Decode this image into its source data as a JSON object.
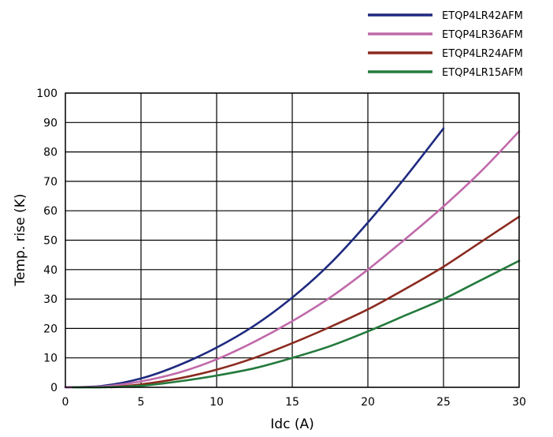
{
  "chart_data": {
    "type": "line",
    "xlabel": "Idc (A)",
    "ylabel": "Temp. rise (K)",
    "xlim": [
      0,
      30
    ],
    "ylim": [
      0,
      100
    ],
    "xticks": [
      "0",
      "5",
      "10",
      "15",
      "20",
      "25",
      "30"
    ],
    "yticks": [
      "0",
      "10",
      "20",
      "30",
      "40",
      "50",
      "60",
      "70",
      "80",
      "90",
      "100"
    ],
    "grid": true,
    "legend_position": "top-right",
    "series": [
      {
        "name": "ETQP4LR42AFM",
        "color": "#1f2a80",
        "points": [
          [
            0,
            0
          ],
          [
            2.5,
            0.5
          ],
          [
            5,
            3
          ],
          [
            7.5,
            7.5
          ],
          [
            10,
            13.5
          ],
          [
            12.5,
            21
          ],
          [
            15,
            30.5
          ],
          [
            17.5,
            42
          ],
          [
            20,
            56
          ],
          [
            22.5,
            71.5
          ],
          [
            25,
            88
          ]
        ]
      },
      {
        "name": "ETQP4LR36AFM",
        "color": "#c06aaa",
        "points": [
          [
            0,
            0
          ],
          [
            2.5,
            0.3
          ],
          [
            5,
            2
          ],
          [
            7.5,
            5
          ],
          [
            10,
            9.5
          ],
          [
            12.5,
            15.5
          ],
          [
            15,
            22.5
          ],
          [
            17.5,
            30.5
          ],
          [
            20,
            40
          ],
          [
            22.5,
            50.5
          ],
          [
            25,
            61.5
          ],
          [
            27.5,
            73.5
          ],
          [
            30,
            87
          ]
        ]
      },
      {
        "name": "ETQP4LR24AFM",
        "color": "#8b2a1f",
        "points": [
          [
            3,
            0
          ],
          [
            5,
            1
          ],
          [
            7.5,
            3
          ],
          [
            10,
            6
          ],
          [
            12.5,
            10
          ],
          [
            15,
            15
          ],
          [
            17.5,
            20.5
          ],
          [
            20,
            26.5
          ],
          [
            22.5,
            33.5
          ],
          [
            25,
            41
          ],
          [
            27.5,
            49.5
          ],
          [
            30,
            58
          ]
        ]
      },
      {
        "name": "ETQP4LR15AFM",
        "color": "#237a3c",
        "points": [
          [
            0.5,
            0
          ],
          [
            2.5,
            0
          ],
          [
            5,
            0.5
          ],
          [
            7.5,
            2
          ],
          [
            10,
            4
          ],
          [
            12.5,
            6.5
          ],
          [
            15,
            10
          ],
          [
            17.5,
            14
          ],
          [
            20,
            19
          ],
          [
            22.5,
            24.5
          ],
          [
            25,
            30
          ],
          [
            27.5,
            36.5
          ],
          [
            30,
            43
          ]
        ]
      }
    ]
  }
}
